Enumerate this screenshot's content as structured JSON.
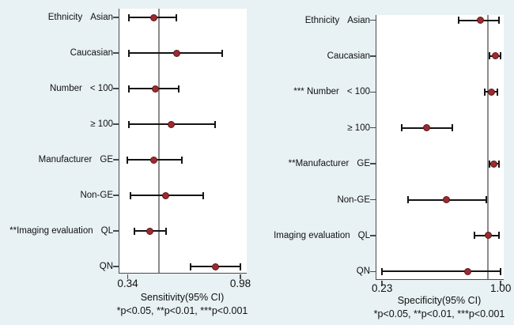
{
  "figure": {
    "background_color": "#e8f1f4",
    "plot_background_color": "#ffffff",
    "axis_color": "#4a4a4a",
    "whisker_color": "#141414",
    "marker_color": "#9b2b30",
    "marker_edge_color": "#5e1518",
    "reference_line_color": "#8c8c8c"
  },
  "chart_data": [
    {
      "type": "scatter",
      "variant": "forest-plot",
      "title": "",
      "xlabel": "Sensitivity(95% CI)",
      "footnote": "*p<0.05, **p<0.01, ***p<0.001",
      "xlim": [
        0.34,
        0.98
      ],
      "x_ticks": [
        "0.34",
        "0.98"
      ],
      "grid": false,
      "reference_line": 0.52,
      "rows": [
        {
          "group": "Ethnicity",
          "label": "Asian",
          "value": 0.49,
          "ci_low": 0.35,
          "ci_high": 0.62
        },
        {
          "group": "",
          "label": "Caucasian",
          "value": 0.62,
          "ci_low": 0.35,
          "ci_high": 0.88
        },
        {
          "group": "Number",
          "label": "< 100",
          "value": 0.5,
          "ci_low": 0.35,
          "ci_high": 0.63
        },
        {
          "group": "",
          "label": "≥ 100",
          "value": 0.59,
          "ci_low": 0.35,
          "ci_high": 0.84
        },
        {
          "group": "Manufacturer",
          "label": "GE",
          "value": 0.49,
          "ci_low": 0.34,
          "ci_high": 0.65
        },
        {
          "group": "",
          "label": "Non-GE",
          "value": 0.56,
          "ci_low": 0.36,
          "ci_high": 0.77
        },
        {
          "group": "**Imaging evaluation",
          "label": "QL",
          "value": 0.47,
          "ci_low": 0.38,
          "ci_high": 0.56
        },
        {
          "group": "",
          "label": "QN",
          "value": 0.84,
          "ci_low": 0.7,
          "ci_high": 0.98
        }
      ]
    },
    {
      "type": "scatter",
      "variant": "forest-plot",
      "title": "",
      "xlabel": "Specificity(95% CI)",
      "footnote": "*p<0.05, **p<0.01, ***p<0.001",
      "xlim": [
        0.23,
        1.0
      ],
      "x_ticks": [
        "0.23",
        "1.00"
      ],
      "grid": false,
      "reference_line": 0.92,
      "rows": [
        {
          "group": "Ethnicity",
          "label": "Asian",
          "value": 0.87,
          "ci_low": 0.73,
          "ci_high": 0.99
        },
        {
          "group": "",
          "label": "Caucasian",
          "value": 0.97,
          "ci_low": 0.93,
          "ci_high": 1.0
        },
        {
          "group": "*** Number",
          "label": "< 100",
          "value": 0.94,
          "ci_low": 0.9,
          "ci_high": 0.98
        },
        {
          "group": "",
          "label": "≥ 100",
          "value": 0.52,
          "ci_low": 0.36,
          "ci_high": 0.69
        },
        {
          "group": "**Manufacturer",
          "label": "GE",
          "value": 0.96,
          "ci_low": 0.93,
          "ci_high": 0.99
        },
        {
          "group": "",
          "label": "Non-GE",
          "value": 0.65,
          "ci_low": 0.4,
          "ci_high": 0.91
        },
        {
          "group": "Imaging evaluation",
          "label": "QL",
          "value": 0.92,
          "ci_low": 0.83,
          "ci_high": 0.99
        },
        {
          "group": "",
          "label": "QN",
          "value": 0.79,
          "ci_low": 0.23,
          "ci_high": 1.0
        }
      ]
    }
  ]
}
